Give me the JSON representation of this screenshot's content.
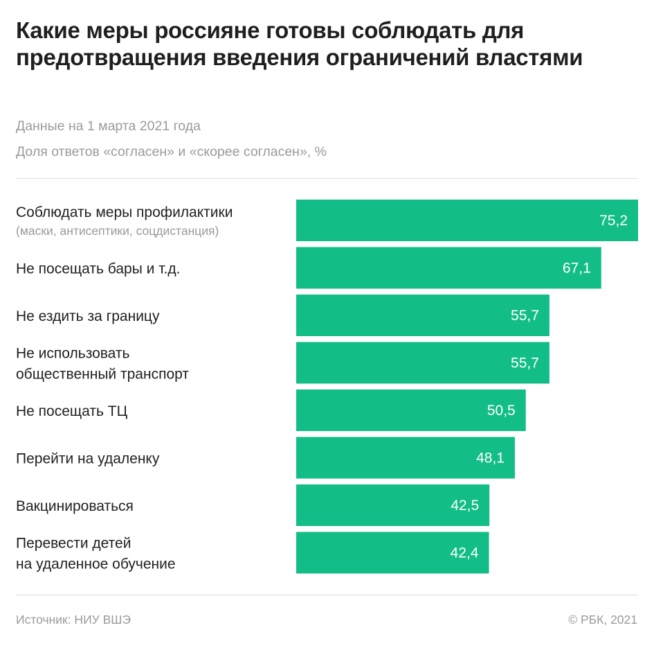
{
  "title": "Какие меры россияне готовы соблюдать для предотвращения введения ограничений властями",
  "subtitle_date": "Данные на 1 марта 2021 года",
  "subtitle_measure": "Доля ответов «согласен» и «скорее согласен», %",
  "source": "Источник: НИУ ВШЭ",
  "copyright": "© РБК, 2021",
  "colors": {
    "bar": "#13bd87",
    "text": "#1f1f1f",
    "muted": "#9a9a9a"
  },
  "chart_data": {
    "type": "bar",
    "orientation": "horizontal",
    "title": "Какие меры россияне готовы соблюдать для предотвращения введения ограничений властями",
    "subtitle": "Доля ответов «согласен» и «скорее согласен», %",
    "xlim": [
      0,
      75.2
    ],
    "grid": false,
    "categories": [
      {
        "lines": [
          "Соблюдать меры профилактики"
        ],
        "note": "(маски, антисептики, соцдистанция)"
      },
      {
        "lines": [
          "Не посещать бары и т.д."
        ]
      },
      {
        "lines": [
          "Не ездить за границу"
        ]
      },
      {
        "lines": [
          "Не использовать",
          "общественный транспорт"
        ]
      },
      {
        "lines": [
          "Не посещать ТЦ"
        ]
      },
      {
        "lines": [
          "Перейти на удаленку"
        ]
      },
      {
        "lines": [
          "Вакцинироваться"
        ]
      },
      {
        "lines": [
          "Перевести детей",
          "на удаленное обучение"
        ]
      }
    ],
    "values": [
      75.2,
      67.1,
      55.7,
      55.7,
      50.5,
      48.1,
      42.5,
      42.4
    ],
    "value_labels": [
      "75,2",
      "67,1",
      "55,7",
      "55,7",
      "50,5",
      "48,1",
      "42,5",
      "42,4"
    ]
  }
}
